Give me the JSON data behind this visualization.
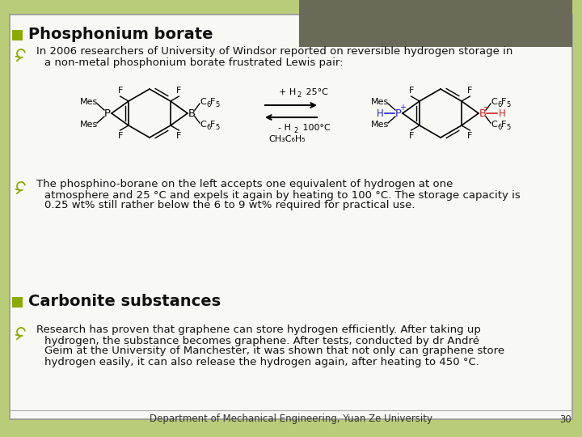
{
  "background_color": "#b8cc7a",
  "slide_bg": "#f8f8f4",
  "header_rect_color": "#6b6a58",
  "green_bullet_color": "#8aaa00",
  "olive_arrow_color": "#8aaa00",
  "title1": "Phosphonium borate",
  "title2": "Carbonite substances",
  "bullet1_line1": "In 2006 researchers of University of Windsor reported on reversible hydrogen storage in",
  "bullet1_line2": "a non-metal phosphonium borate frustrated Lewis pair:",
  "bullet2_line1": "The phosphino-borane on the left accepts one equivalent of hydrogen at one",
  "bullet2_line2": "atmosphere and 25 °C and expels it again by heating to 100 °C. The storage capacity is",
  "bullet2_line3": "0.25 wt% still rather below the 6 to 9 wt% required for practical use.",
  "bullet3_line1": "Research has proven that graphene can store hydrogen efficiently. After taking up",
  "bullet3_line2": "hydrogen, the substance becomes graphene. After tests, conducted by dr André",
  "bullet3_line3": "Geim at the University of Manchester, it was shown that not only can graphene store",
  "bullet3_line4": "hydrogen easily, it can also release the hydrogen again, after heating to 450 °C.",
  "footer": "Department of Mechanical Engineering, Yuan Ze University",
  "page_num": "30",
  "title_fontsize": 14,
  "body_fontsize": 9.5,
  "footer_fontsize": 8.5,
  "chem_fontsize": 8.5,
  "label_fontsize": 8.0
}
